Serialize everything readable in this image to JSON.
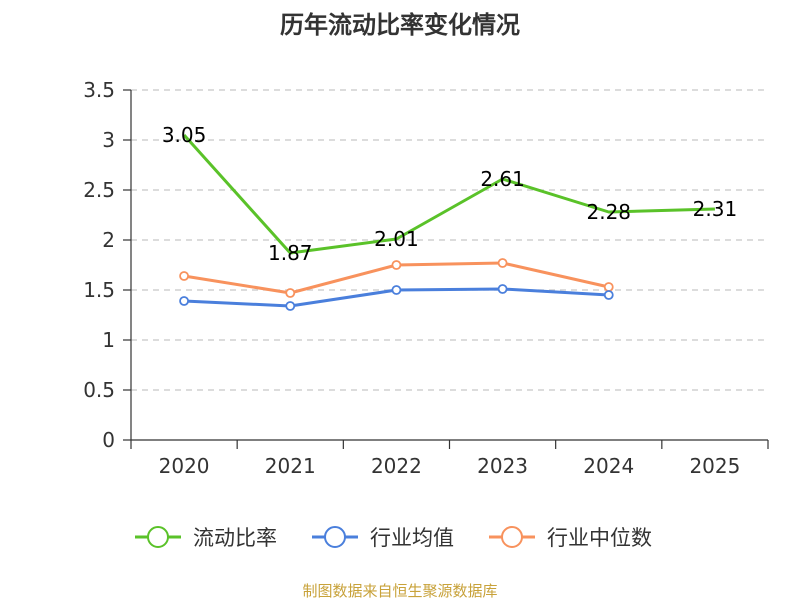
{
  "chart_data": {
    "type": "line",
    "title": "历年流动比率变化情况",
    "xlabel": "",
    "ylabel": "",
    "categories": [
      "2020",
      "2021",
      "2022",
      "2023",
      "2024",
      "2025"
    ],
    "ylim": [
      0,
      3.5
    ],
    "yticks": [
      "0",
      "0.5",
      "1",
      "1.5",
      "2",
      "2.5",
      "3",
      "3.5"
    ],
    "grid": true,
    "legend_position": "bottom",
    "series": [
      {
        "name": "流动比率",
        "color": "#5ac229",
        "values": [
          3.05,
          1.87,
          2.01,
          2.61,
          2.28,
          2.31
        ],
        "labels": [
          "3.05",
          "1.87",
          "2.01",
          "2.61",
          "2.28",
          "2.31"
        ],
        "markers": false
      },
      {
        "name": "行业均值",
        "color": "#4a7fdc",
        "values": [
          1.39,
          1.34,
          1.5,
          1.51,
          1.45,
          null
        ],
        "markers": true
      },
      {
        "name": "行业中位数",
        "color": "#f8925d",
        "values": [
          1.64,
          1.47,
          1.75,
          1.77,
          1.53,
          null
        ],
        "markers": true
      }
    ]
  },
  "source_text": "制图数据来自恒生聚源数据库",
  "source_color": "#c8a23a"
}
